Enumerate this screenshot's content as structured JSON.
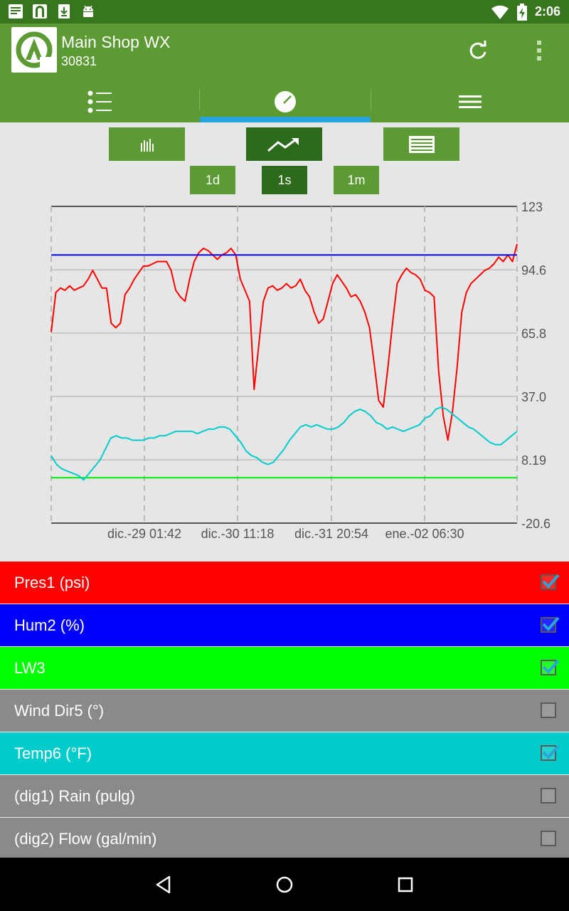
{
  "status_bar": {
    "time": "2:06",
    "icons": [
      "news-icon",
      "gallery-icon",
      "download-icon",
      "android-icon",
      "wifi-icon",
      "battery-charging-icon"
    ]
  },
  "app_bar": {
    "title": "Main Shop WX",
    "subtitle": "30831",
    "actions": [
      "refresh-icon",
      "more-vert-icon"
    ]
  },
  "tabs": [
    {
      "icon": "list-icon",
      "selected": false
    },
    {
      "icon": "gauge-icon",
      "selected": true
    },
    {
      "icon": "menu-icon",
      "selected": false
    }
  ],
  "view_buttons": [
    {
      "icon": "bar-chart-icon",
      "selected": false
    },
    {
      "icon": "trending-up-icon",
      "selected": true
    },
    {
      "icon": "table-icon",
      "selected": false
    }
  ],
  "range_buttons": [
    {
      "label": "1d",
      "selected": false
    },
    {
      "label": "1s",
      "selected": true
    },
    {
      "label": "1m",
      "selected": false
    }
  ],
  "chart_data": {
    "type": "line",
    "ylim": [
      -20.6,
      123
    ],
    "y_ticks": [
      "123",
      "94.6",
      "65.8",
      "37.0",
      "8.19",
      "-20.6"
    ],
    "x_ticks": [
      "dic.-29 01:42",
      "dic.-30 11:18",
      "dic.-31 20:54",
      "ene.-02 06:30"
    ],
    "grid": true,
    "series": [
      {
        "name": "Pres1 (psi)",
        "color": "#ff0000",
        "values": [
          66,
          84,
          86,
          85,
          87,
          85,
          86,
          87,
          90,
          94,
          90,
          86,
          86,
          70,
          68,
          70,
          83,
          86,
          90,
          93,
          96,
          96,
          97,
          98,
          98,
          98,
          94,
          85,
          82,
          80,
          90,
          98,
          102,
          104,
          103,
          101,
          99,
          101,
          102,
          104,
          101,
          90,
          85,
          80,
          40,
          60,
          80,
          86,
          87,
          85,
          86,
          88,
          86,
          87,
          90,
          85,
          82,
          75,
          70,
          72,
          80,
          88,
          92,
          89,
          86,
          82,
          83,
          80,
          75,
          68,
          52,
          35,
          32,
          50,
          70,
          88,
          92,
          95,
          93,
          92,
          90,
          85,
          84,
          82,
          48,
          28,
          17,
          30,
          50,
          75,
          84,
          88,
          90,
          92,
          94,
          95,
          97,
          100,
          98,
          101,
          98,
          106
        ]
      },
      {
        "name": "Hum2 (%)",
        "color": "#0000ff",
        "values": [
          101,
          101
        ]
      },
      {
        "name": "LW3",
        "color": "#00ee00",
        "values": [
          0,
          0
        ]
      },
      {
        "name": "Temp6 (°F)",
        "color": "#00cccc",
        "values": [
          10,
          6,
          4,
          3,
          2,
          1,
          -1,
          2,
          5,
          8,
          13,
          18,
          19,
          18,
          18,
          17,
          17,
          17,
          18,
          18,
          19,
          19,
          20,
          21,
          21,
          21,
          21,
          20,
          21,
          22,
          22,
          23,
          23,
          22,
          19,
          16,
          12,
          10,
          9,
          7,
          6,
          7,
          10,
          13,
          17,
          20,
          23,
          24,
          23,
          24,
          23,
          22,
          22,
          23,
          25,
          28,
          30,
          31,
          30,
          28,
          25,
          24,
          22,
          23,
          22,
          21,
          22,
          23,
          24,
          27,
          28,
          31,
          32,
          31,
          29,
          27,
          25,
          23,
          22,
          20,
          18,
          16,
          15,
          15,
          17,
          19,
          21
        ]
      }
    ]
  },
  "legend": [
    {
      "label": "Pres1 (psi)",
      "color": "#ff0000",
      "checked": true
    },
    {
      "label": "Hum2 (%)",
      "color": "#0000ff",
      "checked": true
    },
    {
      "label": "LW3",
      "color": "#00ff00",
      "checked": true
    },
    {
      "label": "Wind Dir5 (°)",
      "color": "#8a8a8a",
      "checked": false
    },
    {
      "label": "Temp6 (°F)",
      "color": "#00cccc",
      "checked": true
    },
    {
      "label": "(dig1) Rain (pulg)",
      "color": "#8a8a8a",
      "checked": false
    },
    {
      "label": "(dig2) Flow (gal/min)",
      "color": "#8a8a8a",
      "checked": false
    }
  ],
  "nav_bar": [
    "back-icon",
    "home-icon",
    "recents-icon"
  ]
}
